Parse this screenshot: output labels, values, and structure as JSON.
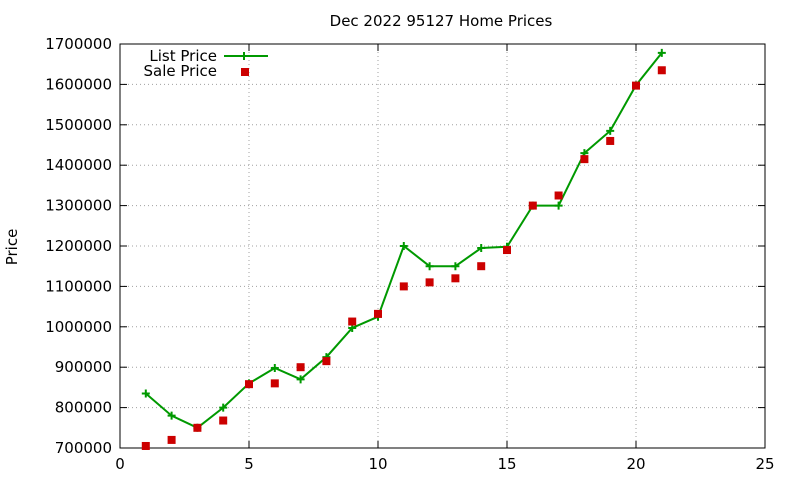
{
  "chart_data": {
    "type": "line",
    "title": "Dec 2022 95127 Home Prices",
    "xlabel": "",
    "ylabel": "Price",
    "xlim": [
      0,
      25
    ],
    "ylim": [
      700000,
      1700000
    ],
    "xticks": [
      0,
      5,
      10,
      15,
      20,
      25
    ],
    "yticks": [
      700000,
      800000,
      900000,
      1000000,
      1100000,
      1200000,
      1300000,
      1400000,
      1500000,
      1600000,
      1700000
    ],
    "grid": true,
    "legend_position": "top-left",
    "series": [
      {
        "name": "List Price",
        "style": "line-with-plus-markers",
        "color": "#009900",
        "x": [
          1,
          2,
          3,
          4,
          5,
          6,
          7,
          8,
          9,
          10,
          11,
          12,
          13,
          14,
          15,
          16,
          17,
          18,
          19,
          20,
          21
        ],
        "values": [
          835000,
          780000,
          750000,
          800000,
          860000,
          898000,
          870000,
          925000,
          997000,
          1025000,
          1200000,
          1150000,
          1150000,
          1195000,
          1198000,
          1300000,
          1300000,
          1430000,
          1485000,
          1598000,
          1678000
        ]
      },
      {
        "name": "Sale Price",
        "style": "square-markers",
        "color": "#cc0000",
        "x": [
          1,
          2,
          3,
          4,
          5,
          6,
          7,
          8,
          9,
          10,
          11,
          12,
          13,
          14,
          15,
          16,
          17,
          18,
          19,
          20,
          21
        ],
        "values": [
          705000,
          720000,
          750000,
          768000,
          858000,
          860000,
          900000,
          915000,
          1013000,
          1032000,
          1100000,
          1110000,
          1120000,
          1150000,
          1190000,
          1300000,
          1325000,
          1415000,
          1460000,
          1597000,
          1635000
        ]
      }
    ]
  }
}
